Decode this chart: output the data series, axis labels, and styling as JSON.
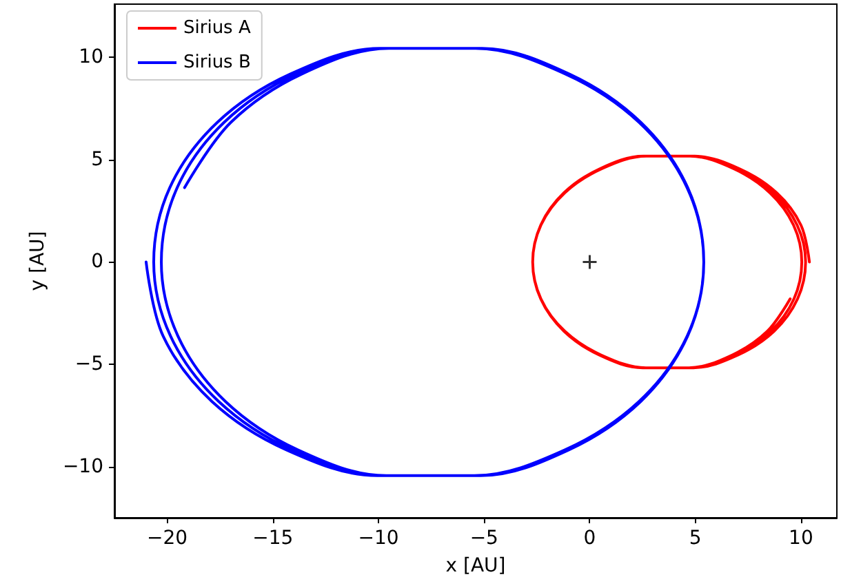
{
  "chart_data": {
    "type": "line",
    "xlabel": "x [AU]",
    "ylabel": "y [AU]",
    "xlim": [
      -22.5,
      11.7
    ],
    "ylim": [
      -12.5,
      12.6
    ],
    "xticks": [
      -20,
      -15,
      -10,
      -5,
      0,
      5,
      10
    ],
    "yticks": [
      -10,
      -5,
      0,
      5,
      10
    ],
    "grid": false,
    "legend": "top left",
    "marker": "none",
    "line_style": "solid",
    "series": [
      {
        "name": "Sirius A",
        "color": "#ff0000",
        "x": [
          10.4,
          10.0,
          8.85,
          7.1,
          4.97,
          2.69,
          0.56,
          -1.18,
          -2.31,
          -2.7,
          -2.31,
          -1.18,
          0.55,
          2.66,
          4.91,
          7.01,
          8.73,
          9.84,
          10.22,
          9.82,
          8.69,
          6.97,
          4.86,
          2.62,
          0.52,
          -1.2,
          -2.31,
          -2.7,
          -2.32,
          -1.2,
          0.5,
          2.58,
          4.8,
          6.88,
          8.57,
          9.67,
          10.04,
          9.65,
          8.53,
          6.83,
          4.75,
          2.54,
          0.47,
          -1.22,
          -2.32,
          -2.7,
          -2.32,
          -1.22,
          0.46,
          2.51,
          4.7,
          6.74,
          8.41,
          9.49
        ],
        "values": [
          0,
          1.8,
          3.38,
          4.55,
          5.17,
          5.17,
          4.55,
          3.38,
          1.8,
          0,
          -1.8,
          -3.38,
          -4.55,
          -5.17,
          -5.17,
          -4.55,
          -3.38,
          -1.8,
          0,
          1.8,
          3.38,
          4.55,
          5.17,
          5.17,
          4.55,
          3.38,
          1.8,
          0,
          -1.8,
          -3.38,
          -4.55,
          -5.17,
          -5.17,
          -4.55,
          -3.38,
          -1.8,
          0,
          1.8,
          3.38,
          4.55,
          5.17,
          5.17,
          4.55,
          3.38,
          1.8,
          0,
          -1.8,
          -3.38,
          -4.55,
          -5.17,
          -5.17,
          -4.55,
          -3.38,
          -1.8
        ]
      },
      {
        "name": "Sirius B",
        "color": "#0000ff",
        "x": [
          -21.0,
          -20.19,
          -17.88,
          -14.36,
          -10.05,
          -5.46,
          -1.17,
          2.33,
          4.61,
          5.4,
          4.61,
          2.34,
          -1.14,
          -5.4,
          -9.93,
          -14.18,
          -17.63,
          -19.88,
          -20.64,
          -19.84,
          -17.56,
          -14.09,
          -9.84,
          -5.31,
          -1.08,
          2.37,
          4.62,
          5.4,
          4.62,
          2.38,
          -1.05,
          -5.25,
          -9.72,
          -13.91,
          -17.31,
          -19.53,
          -20.28,
          -19.49,
          -17.24,
          -13.82,
          -9.63,
          -5.16,
          -0.99,
          2.41,
          4.63,
          5.4,
          4.64,
          2.42,
          -0.96,
          -5.1,
          -9.51,
          -13.64,
          -16.99,
          -19.18
        ],
        "values": [
          0,
          -3.63,
          -6.82,
          -9.18,
          -10.44,
          -10.44,
          -9.18,
          -6.82,
          -3.63,
          0,
          3.63,
          6.82,
          9.18,
          10.44,
          10.44,
          9.18,
          6.82,
          3.63,
          0,
          -3.63,
          -6.82,
          -9.18,
          -10.44,
          -10.44,
          -9.18,
          -6.82,
          -3.63,
          0,
          3.63,
          6.82,
          9.18,
          10.44,
          10.44,
          9.18,
          6.82,
          3.63,
          0,
          -3.63,
          -6.82,
          -9.18,
          -10.44,
          -10.44,
          -9.18,
          -6.82,
          -3.63,
          0,
          3.63,
          6.82,
          9.18,
          10.44,
          10.44,
          9.18,
          6.82,
          3.63
        ]
      },
      {
        "type": "scatter",
        "color": "#000000",
        "marker": "cross",
        "x": [
          0
        ],
        "values": [
          0
        ]
      }
    ]
  }
}
